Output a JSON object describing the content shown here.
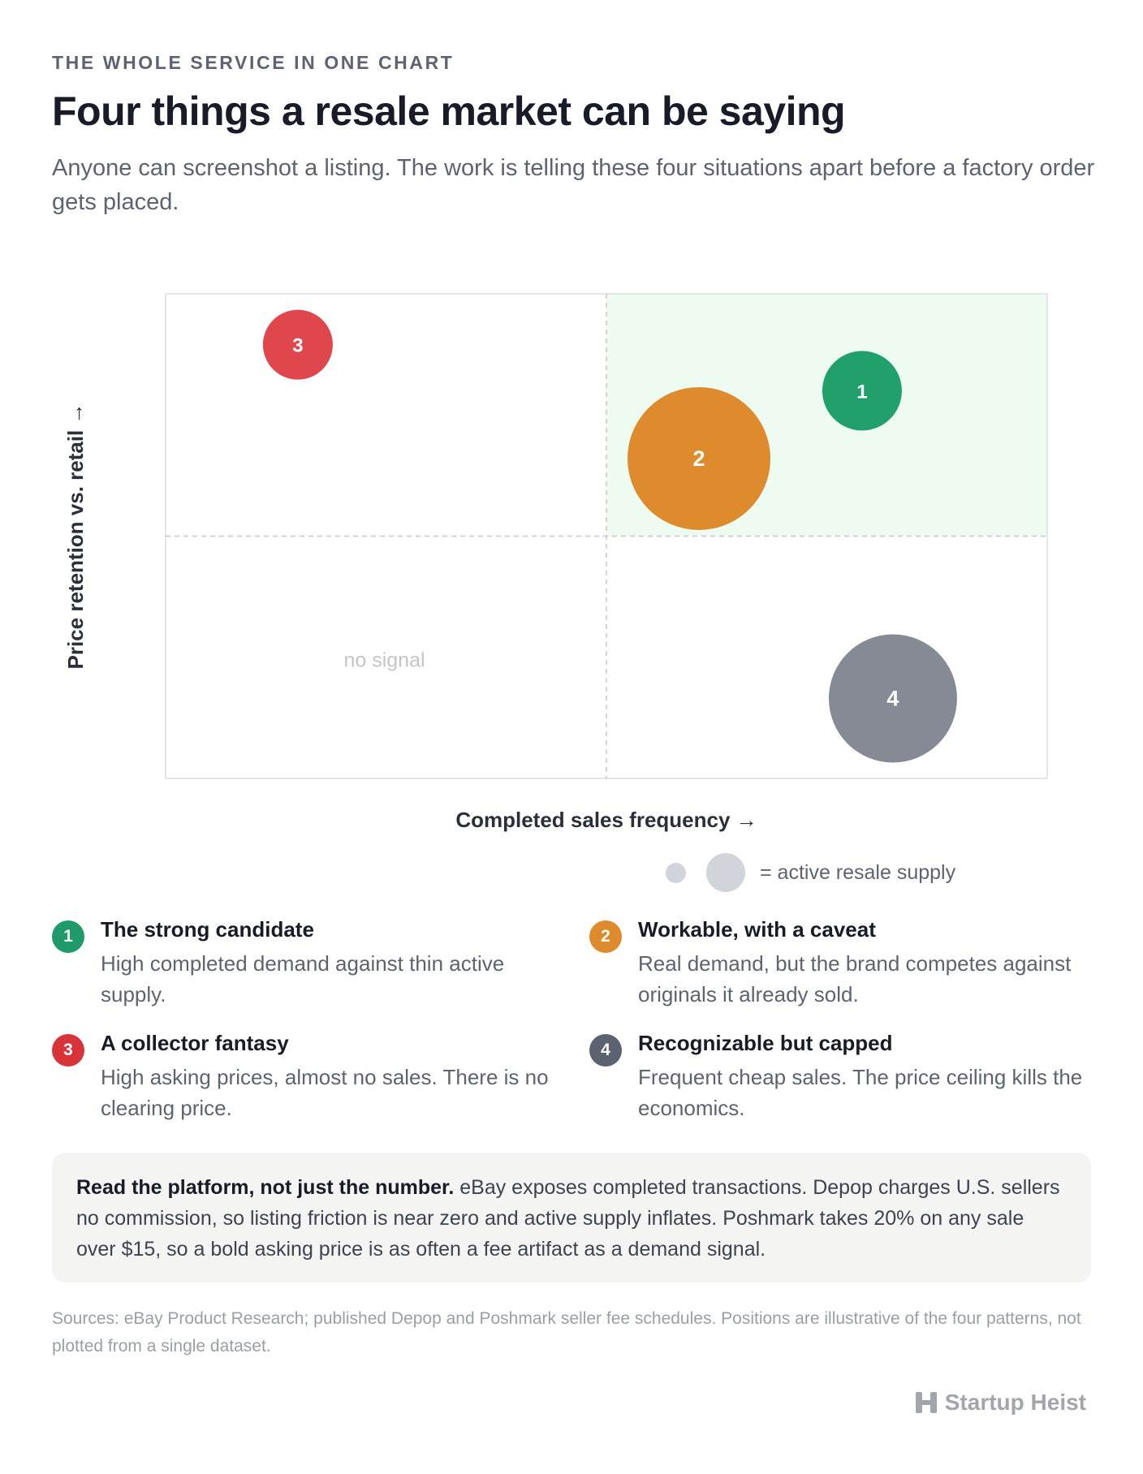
{
  "header": {
    "eyebrow": "THE WHOLE SERVICE IN ONE CHART",
    "title": "Four things a resale market can be saying",
    "subtitle": "Anyone can screenshot a listing. The work is telling these four situations apart before a factory order gets placed."
  },
  "chart_data": {
    "type": "scatter",
    "xlabel": "Completed sales frequency →",
    "ylabel": "Price retention vs. retail →",
    "xlim": [
      0,
      1
    ],
    "ylim": [
      0,
      1
    ],
    "quadrant_split": {
      "x": 0.5,
      "y": 0.5
    },
    "highlight_quadrant": "top-right",
    "empty_quadrant_label": "no signal",
    "size_legend_label": "= active resale supply",
    "points": [
      {
        "label": "1",
        "x": 0.79,
        "y": 0.8,
        "supply": 0.35,
        "color": "#22a06b"
      },
      {
        "label": "2",
        "x": 0.605,
        "y": 0.66,
        "supply": 1.0,
        "color": "#dd8b2c"
      },
      {
        "label": "3",
        "x": 0.15,
        "y": 0.895,
        "supply": 0.25,
        "color": "#e0474c"
      },
      {
        "label": "4",
        "x": 0.825,
        "y": 0.165,
        "supply": 0.85,
        "color": "#868a94"
      }
    ]
  },
  "legend": [
    {
      "num": "1",
      "color": "#1f9a6a",
      "head": "The strong candidate",
      "desc": "High completed demand against thin active supply."
    },
    {
      "num": "2",
      "color": "#dd8b2c",
      "head": "Workable, with a caveat",
      "desc": "Real demand, but the brand competes against originals it already sold."
    },
    {
      "num": "3",
      "color": "#d9333a",
      "head": "A collector fantasy",
      "desc": "High asking prices, almost no sales. There is no clearing price."
    },
    {
      "num": "4",
      "color": "#5d6270",
      "head": "Recognizable but capped",
      "desc": "Frequent cheap sales. The price ceiling kills the economics."
    }
  ],
  "note": {
    "lead": "Read the platform, not just the number.",
    "body": " eBay exposes completed transactions. Depop charges U.S. sellers no commission, so listing friction is near zero and active supply inflates. Poshmark takes 20% on any sale over $15, so a bold asking price is as often a fee artifact as a demand signal."
  },
  "sources": "Sources: eBay Product Research; published Depop and Poshmark seller fee schedules. Positions are illustrative of the four patterns, not plotted from a single dataset.",
  "brand": {
    "name": "Startup Heist",
    "icon": "startup-heist-logo-icon"
  }
}
